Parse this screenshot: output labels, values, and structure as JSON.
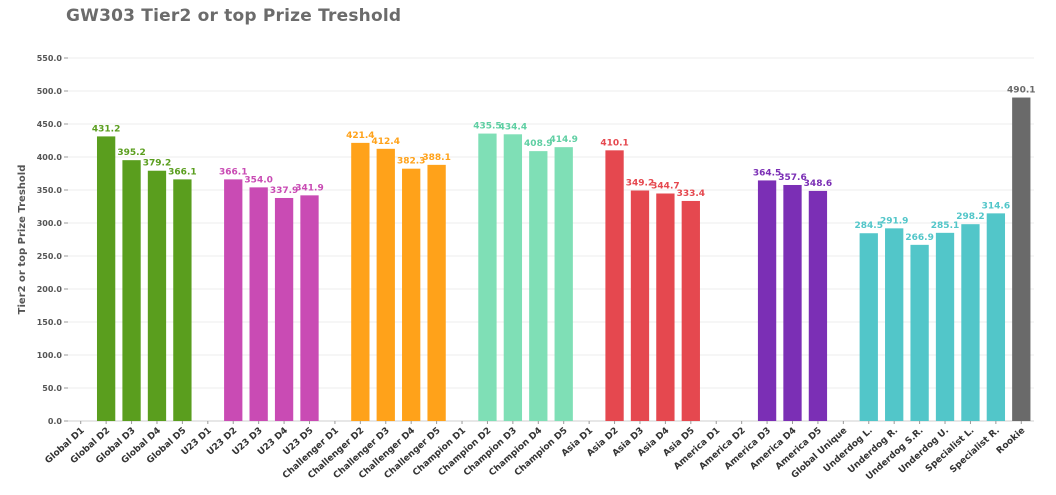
{
  "chart_data": {
    "type": "bar",
    "title": "GW303 Tier2 or top Prize Treshold",
    "ylabel": "Tier2 or top Prize Treshold",
    "xlabel": "",
    "ylim": [
      0,
      550
    ],
    "yticks": [
      0,
      50,
      100,
      150,
      200,
      250,
      300,
      350,
      400,
      450,
      500,
      550
    ],
    "ytick_labels": [
      "0.0",
      "50.0",
      "100.0",
      "150.0",
      "200.0",
      "250.0",
      "300.0",
      "350.0",
      "400.0",
      "450.0",
      "500.0",
      "550.0"
    ],
    "grid": true,
    "legend": "none",
    "categories": [
      "Global D1",
      "Global D2",
      "Global D3",
      "Global D4",
      "Global D5",
      "U23 D1",
      "U23 D2",
      "U23 D3",
      "U23 D4",
      "U23 D5",
      "Challenger D1",
      "Challenger D2",
      "Challenger D3",
      "Challenger D4",
      "Challenger D5",
      "Champion D1",
      "Champion D2",
      "Champion D3",
      "Champion D4",
      "Champion D5",
      "Asia D1",
      "Asia D2",
      "Asia D3",
      "Asia D4",
      "Asia D5",
      "America D1",
      "America D2",
      "America D3",
      "America D4",
      "America D5",
      "Global Unique",
      "Underdog L.",
      "Underdog R.",
      "Underdog S.R.",
      "Underdog U.",
      "Specialist L.",
      "Specialist R.",
      "Rookie"
    ],
    "values": [
      null,
      431.2,
      395.2,
      379.2,
      366.1,
      null,
      366.1,
      354.0,
      337.9,
      341.9,
      null,
      421.4,
      412.4,
      382.3,
      388.1,
      null,
      435.5,
      434.4,
      408.9,
      414.9,
      null,
      410.1,
      349.2,
      344.7,
      333.4,
      null,
      null,
      364.5,
      357.6,
      348.6,
      null,
      284.5,
      291.9,
      266.9,
      285.1,
      298.2,
      314.6,
      490.1
    ],
    "value_labels": [
      "",
      "431.2",
      "395.2",
      "379.2",
      "366.1",
      "",
      "366.1",
      "354.0",
      "337.9",
      "341.9",
      "",
      "421.4",
      "412.4",
      "382.3",
      "388.1",
      "",
      "435.5",
      "434.4",
      "408.9",
      "414.9",
      "",
      "410.1",
      "349.2",
      "344.7",
      "333.4",
      "",
      "",
      "364.5",
      "357.6",
      "348.6",
      "",
      "284.5",
      "291.9",
      "266.9",
      "285.1",
      "298.2",
      "314.6",
      "490.1"
    ],
    "colors": [
      "#5a9e1e",
      "#5a9e1e",
      "#5a9e1e",
      "#5a9e1e",
      "#5a9e1e",
      "#c94bb4",
      "#c94bb4",
      "#c94bb4",
      "#c94bb4",
      "#c94bb4",
      "#ffa21a",
      "#ffa21a",
      "#ffa21a",
      "#ffa21a",
      "#ffa21a",
      "#7fdfb6",
      "#7fdfb6",
      "#7fdfb6",
      "#7fdfb6",
      "#7fdfb6",
      "#e5484f",
      "#e5484f",
      "#e5484f",
      "#e5484f",
      "#e5484f",
      "#7b2fb5",
      "#7b2fb5",
      "#7b2fb5",
      "#7b2fb5",
      "#7b2fb5",
      "#52c6c9",
      "#52c6c9",
      "#52c6c9",
      "#52c6c9",
      "#52c6c9",
      "#52c6c9",
      "#52c6c9",
      "#6a6a6a"
    ]
  }
}
